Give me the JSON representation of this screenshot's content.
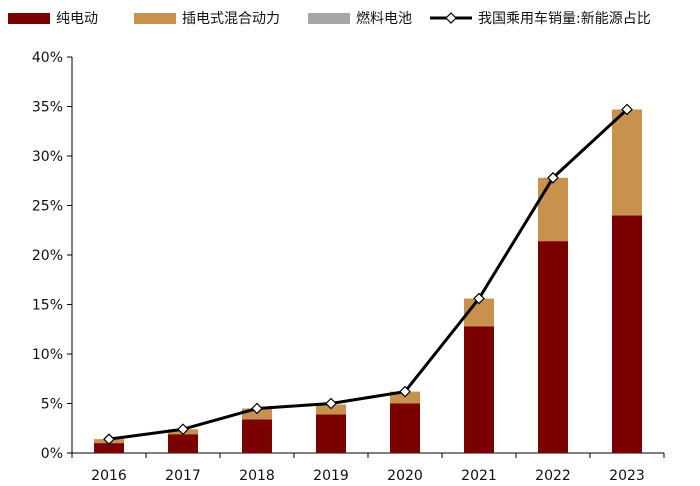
{
  "chart_data": {
    "type": "bar",
    "stacked": true,
    "title": "",
    "xlabel": "",
    "ylabel": "",
    "categories": [
      "2016",
      "2017",
      "2018",
      "2019",
      "2020",
      "2021",
      "2022",
      "2023"
    ],
    "series": [
      {
        "name": "纯电动",
        "kind": "bar",
        "color": "#7b0000",
        "values": [
          1.0,
          1.9,
          3.4,
          3.9,
          5.0,
          12.8,
          21.4,
          24.0
        ]
      },
      {
        "name": "插电式混合动力",
        "kind": "bar",
        "color": "#c8924e",
        "values": [
          0.4,
          0.5,
          1.1,
          1.0,
          1.2,
          2.8,
          6.4,
          10.7
        ]
      },
      {
        "name": "燃料电池",
        "kind": "bar",
        "color": "#a6a6a6",
        "values": [
          0,
          0,
          0,
          0,
          0,
          0,
          0,
          0
        ]
      },
      {
        "name": "我国乘用车销量:新能源占比",
        "kind": "line",
        "color": "#000000",
        "values": [
          1.4,
          2.4,
          4.5,
          5.0,
          6.2,
          15.6,
          27.8,
          34.7
        ]
      }
    ],
    "ylim": [
      0,
      40
    ],
    "yticks": [
      "0%",
      "5%",
      "10%",
      "15%",
      "20%",
      "25%",
      "30%",
      "35%",
      "40%"
    ],
    "grid": false,
    "legend": "top"
  }
}
